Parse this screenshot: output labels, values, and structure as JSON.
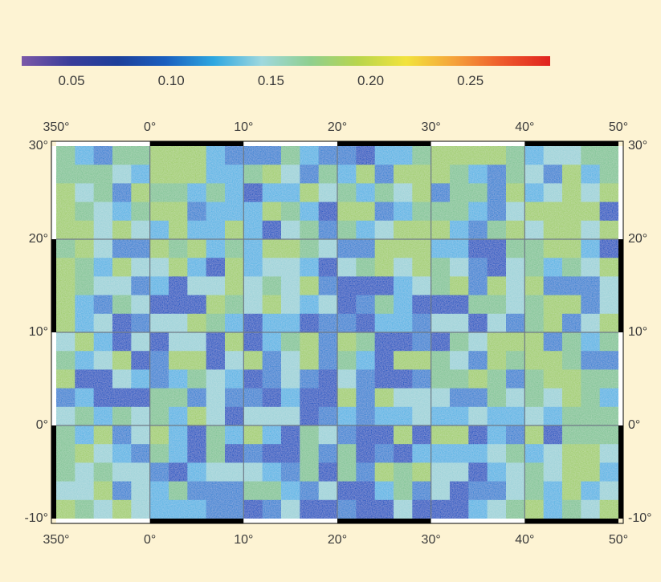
{
  "map": {
    "colorbar": {
      "stops": [
        "#7b58a8",
        "#3a3d9a",
        "#1d3f9a",
        "#1a5fbf",
        "#2ea7e0",
        "#9fd8de",
        "#8fcf8f",
        "#b8d54c",
        "#f2e33c",
        "#f5a23a",
        "#ee5a2c",
        "#e0221e"
      ],
      "ticks": [
        {
          "label": "0.05",
          "value": 0.05
        },
        {
          "label": "0.10",
          "value": 0.1
        },
        {
          "label": "0.15",
          "value": 0.15
        },
        {
          "label": "0.20",
          "value": 0.2
        },
        {
          "label": "0.25",
          "value": 0.25
        }
      ],
      "range": [
        0.025,
        0.29
      ]
    },
    "lon_top": [
      "350°",
      "0°",
      "10°",
      "20°",
      "30°",
      "40°",
      "50°"
    ],
    "lon_bottom": [
      "350°",
      "0°",
      "10°",
      "20°",
      "30°",
      "40°",
      "50°"
    ],
    "lat_left": [
      "30°",
      "20°",
      "10°",
      "0°",
      "-10°"
    ],
    "lat_right": [
      "30°",
      "20°",
      "10°",
      "0°",
      "-10°"
    ],
    "lon_range": [
      -10,
      50
    ],
    "lat_range": [
      -10,
      30
    ],
    "cell_colors": [
      "#2a5bc4",
      "#3f86d4",
      "#5fb6e5",
      "#9fd3d9",
      "#86c69a",
      "#a4cf75"
    ],
    "grid": [
      "421445552111421102245555423344",
      "444325552245314251555421431524",
      "534154424202253424351441523535",
      "543245512225420551244421355550",
      "553532522520341423555214535535",
      "453115452425543115552200445520",
      "542533520523320345354310342435",
      "543312033534351000234515351113",
      "521430005435323014200044345513",
      "523013354202201102213303145135",
      "352030330502451540010435551424",
      "423501550351351420554315455411",
      "500321243201310310014454145544",
      "120004413110200515333114343542",
      "342434253033301212232232232444",
      "425135204252043100505502150444",
      "453214204010041401022223423553",
      "434331023332140415453302343552",
      "335132411144213002413011342523",
      "543532221101300100300023452435"
    ]
  }
}
